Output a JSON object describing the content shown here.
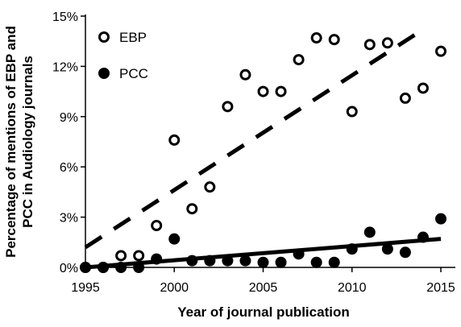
{
  "chart_data": {
    "type": "scatter",
    "title": "",
    "xlabel": "Year of  journal publication",
    "ylabel_lines": [
      "Percentage of mentions of EBP and",
      "PCC in Audiology journals"
    ],
    "xlim": [
      1995,
      2015
    ],
    "ylim": [
      0,
      15
    ],
    "x_ticks": [
      1995,
      2000,
      2005,
      2010,
      2015
    ],
    "y_ticks": [
      0,
      3,
      6,
      9,
      12,
      15
    ],
    "y_tick_labels": [
      "0%",
      "3%",
      "6%",
      "9%",
      "12%",
      "15%"
    ],
    "grid": false,
    "legend_position": "top-left",
    "series": [
      {
        "name": "EBP",
        "marker": "open-circle",
        "trendline": "dashed",
        "trend": {
          "x": [
            1995,
            2014
          ],
          "y": [
            1.2,
            14.2
          ]
        },
        "points": [
          {
            "x": 1995,
            "y": 0.0
          },
          {
            "x": 1996,
            "y": 0.0
          },
          {
            "x": 1997,
            "y": 0.7
          },
          {
            "x": 1998,
            "y": 0.7
          },
          {
            "x": 1999,
            "y": 2.5
          },
          {
            "x": 2000,
            "y": 7.6
          },
          {
            "x": 2001,
            "y": 3.5
          },
          {
            "x": 2002,
            "y": 4.8
          },
          {
            "x": 2003,
            "y": 9.6
          },
          {
            "x": 2004,
            "y": 11.5
          },
          {
            "x": 2005,
            "y": 10.5
          },
          {
            "x": 2006,
            "y": 10.5
          },
          {
            "x": 2007,
            "y": 12.4
          },
          {
            "x": 2008,
            "y": 13.7
          },
          {
            "x": 2009,
            "y": 13.6
          },
          {
            "x": 2010,
            "y": 9.3
          },
          {
            "x": 2011,
            "y": 13.3
          },
          {
            "x": 2012,
            "y": 13.4
          },
          {
            "x": 2013,
            "y": 10.1
          },
          {
            "x": 2014,
            "y": 10.7
          },
          {
            "x": 2015,
            "y": 12.9
          }
        ]
      },
      {
        "name": "PCC",
        "marker": "filled-circle",
        "trendline": "solid",
        "trend": {
          "x": [
            1995,
            2015
          ],
          "y": [
            0.0,
            1.7
          ]
        },
        "points": [
          {
            "x": 1995,
            "y": 0.0
          },
          {
            "x": 1996,
            "y": 0.0
          },
          {
            "x": 1997,
            "y": 0.0
          },
          {
            "x": 1998,
            "y": 0.0
          },
          {
            "x": 1999,
            "y": 0.5
          },
          {
            "x": 2000,
            "y": 1.7
          },
          {
            "x": 2001,
            "y": 0.4
          },
          {
            "x": 2002,
            "y": 0.4
          },
          {
            "x": 2003,
            "y": 0.4
          },
          {
            "x": 2004,
            "y": 0.4
          },
          {
            "x": 2005,
            "y": 0.3
          },
          {
            "x": 2006,
            "y": 0.3
          },
          {
            "x": 2007,
            "y": 0.8
          },
          {
            "x": 2008,
            "y": 0.3
          },
          {
            "x": 2009,
            "y": 0.3
          },
          {
            "x": 2010,
            "y": 1.1
          },
          {
            "x": 2011,
            "y": 2.1
          },
          {
            "x": 2012,
            "y": 1.1
          },
          {
            "x": 2013,
            "y": 0.9
          },
          {
            "x": 2014,
            "y": 1.8
          },
          {
            "x": 2015,
            "y": 2.9
          }
        ]
      }
    ]
  }
}
